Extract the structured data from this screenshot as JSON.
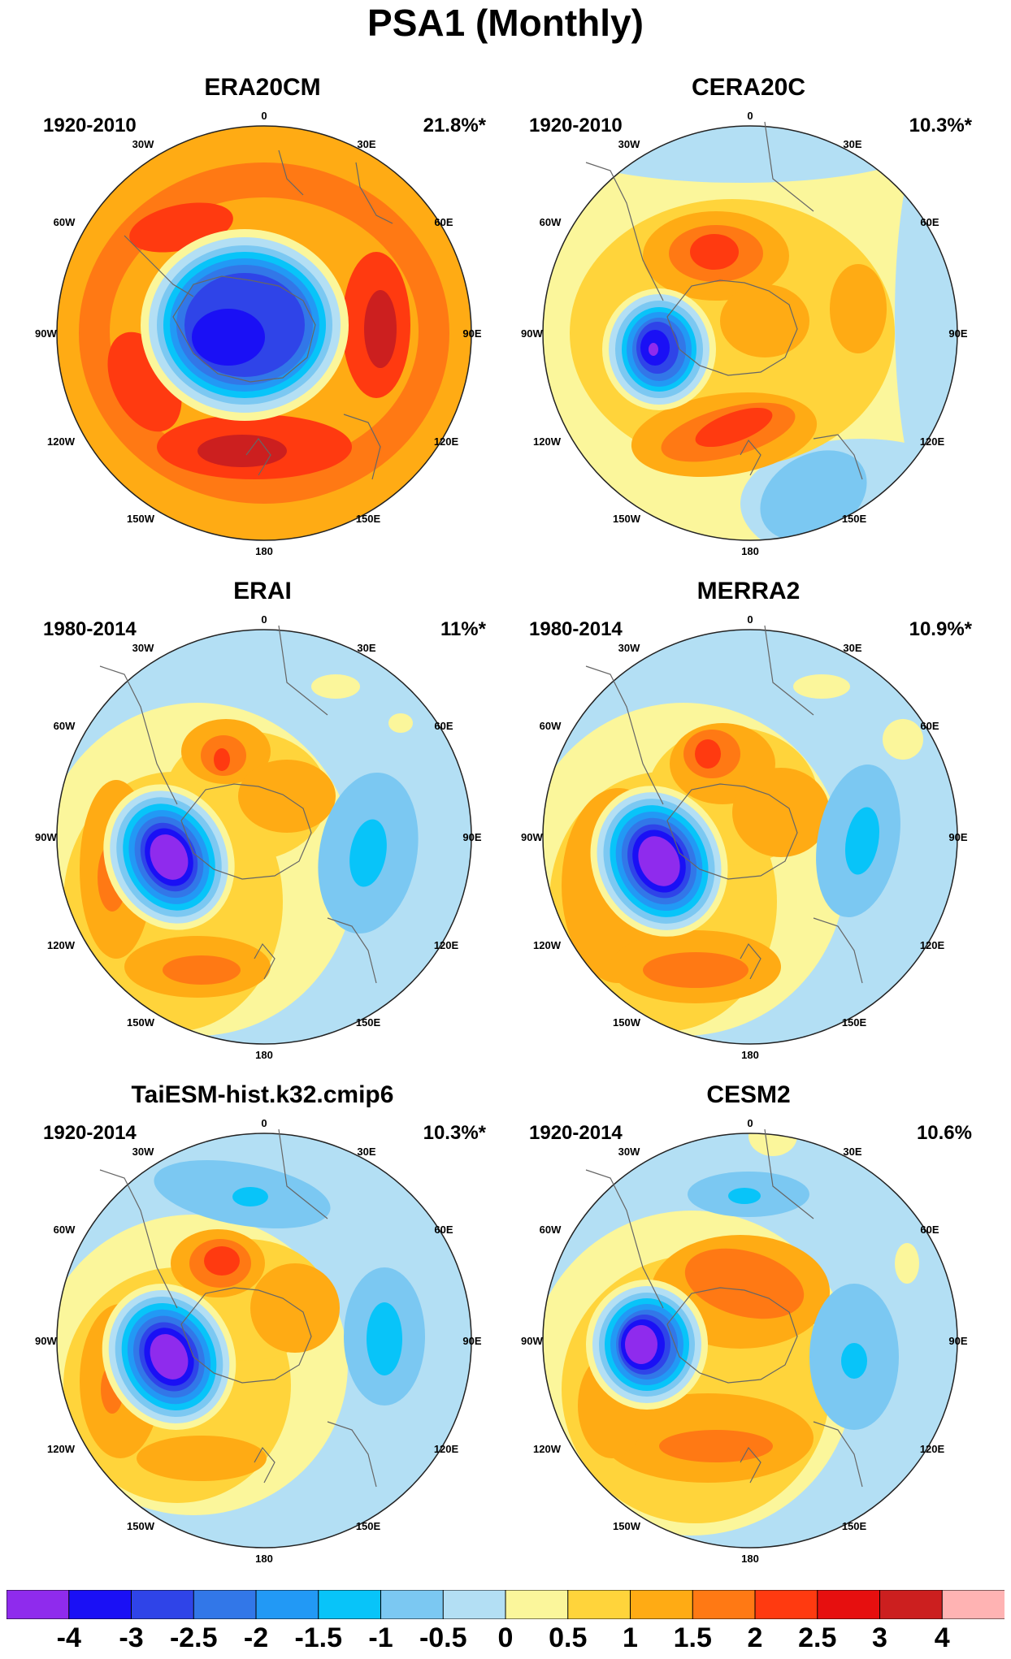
{
  "title": "PSA1 (Monthly)",
  "lon_labels": [
    "0",
    "30E",
    "60E",
    "90E",
    "120E",
    "150E",
    "180",
    "150W",
    "120W",
    "90W",
    "60W",
    "30W"
  ],
  "colorbar": {
    "colors": [
      "#8f2bed",
      "#1a10f5",
      "#2f44e8",
      "#3277e8",
      "#2299f5",
      "#08c4f9",
      "#7bc8f2",
      "#b3dff4",
      "#fbf69b",
      "#ffd43b",
      "#ffab14",
      "#ff7914",
      "#ff3a10",
      "#e60f0f",
      "#cc1f1f",
      "#ffb3b3"
    ],
    "labels": [
      "-4",
      "-3",
      "-2.5",
      "-2",
      "-1.5",
      "-1",
      "-0.5",
      "0",
      "0.5",
      "1",
      "1.5",
      "2",
      "2.5",
      "3",
      "4"
    ]
  },
  "panels": [
    {
      "title": "ERA20CM",
      "period": "1920-2010",
      "variance": "21.8%*"
    },
    {
      "title": "CERA20C",
      "period": "1920-2010",
      "variance": "10.3%*"
    },
    {
      "title": "ERAI",
      "period": "1980-2014",
      "variance": "11%*"
    },
    {
      "title": "MERRA2",
      "period": "1980-2014",
      "variance": "10.9%*"
    },
    {
      "title": "TaiESM-hist.k32.cmip6",
      "period": "1920-2014",
      "variance": "10.3%*"
    },
    {
      "title": "CESM2",
      "period": "1920-2014",
      "variance": "10.6%"
    }
  ]
}
